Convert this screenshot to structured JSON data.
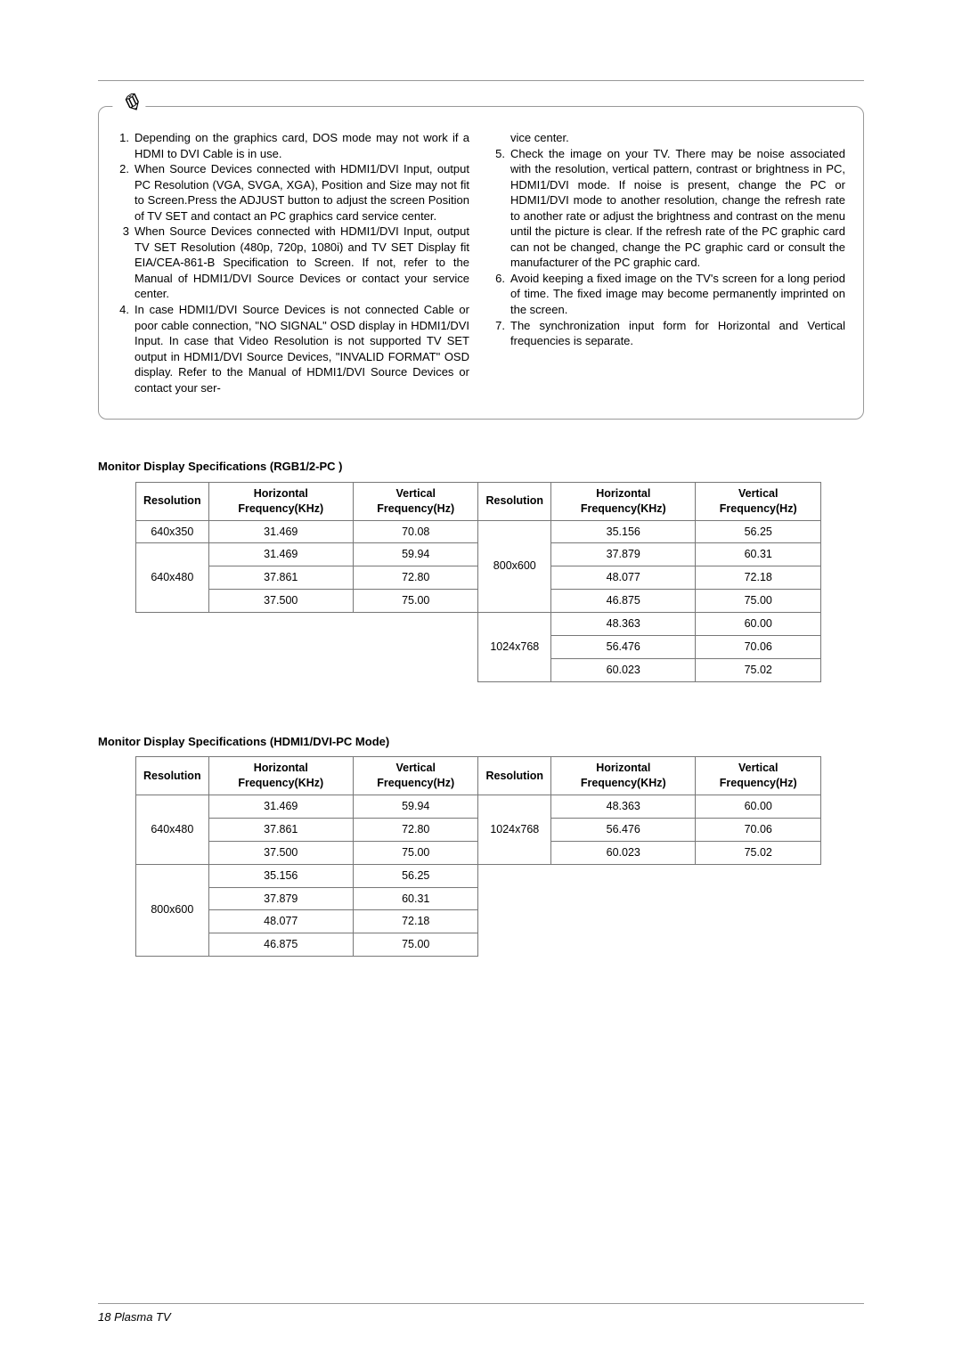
{
  "notes_left": [
    {
      "n": "1.",
      "t": "Depending on the graphics card, DOS mode may not work if a HDMI to DVI Cable is in use."
    },
    {
      "n": "2.",
      "t": "When Source Devices connected with HDMI1/DVI Input, output PC Resolution (VGA, SVGA, XGA), Position and Size may not fit to Screen.Press the ADJUST button to adjust the screen Position of TV SET and contact an PC graphics card service center."
    },
    {
      "n": "3",
      "t": "When Source Devices connected with HDMI1/DVI Input, output TV SET Resolution (480p, 720p, 1080i) and TV SET Display fit EIA/CEA-861-B Specification to Screen. If not, refer to the Manual of HDMI1/DVI Source Devices or contact your service center."
    },
    {
      "n": "4.",
      "t": "In case HDMI1/DVI Source Devices is not connected Cable or poor cable connection, \"NO SIGNAL\" OSD display in HDMI1/DVI Input. In case that Video Resolution is not supported TV SET output in HDMI1/DVI Source Devices, \"INVALID FORMAT\" OSD display. Refer to the Manual of HDMI1/DVI Source Devices or contact your ser‑"
    }
  ],
  "notes_right": [
    {
      "n": "",
      "t": "vice center."
    },
    {
      "n": "5.",
      "t": "Check the image on your TV. There may be noise associated with the resolution, vertical pattern, contrast or brightness in PC, HDMI1/DVI mode. If noise is present, change the PC or HDMI1/DVI mode to another resolution, change the refresh rate to another rate or adjust the brightness and contrast on the menu until the picture is clear. If the refresh rate of the PC graphic card can not be changed, change the PC graphic card or consult the manufacturer of the PC graphic card."
    },
    {
      "n": "6.",
      "t": "Avoid keeping a fixed image on the TV's screen for a long period of time. The fixed image may become permanently imprinted on the screen."
    },
    {
      "n": "7.",
      "t": "The synchronization input form for Horizontal and Vertical frequencies is separate."
    }
  ],
  "section1_title": "Monitor Display Specifications (RGB1/2-PC )",
  "section2_title": "Monitor Display Specifications (HDMI1/DVI-PC Mode)",
  "headers": {
    "res": "Resolution",
    "hf": "Horizontal Frequency(KHz)",
    "vf": "Vertical Frequency(Hz)"
  },
  "t1": {
    "r1": {
      "res": "640x350",
      "h": "31.469",
      "v": "70.08"
    },
    "r2": {
      "res": "640x480",
      "h1": "31.469",
      "v1": "59.94",
      "h2": "37.861",
      "v2": "72.80",
      "h3": "37.500",
      "v3": "75.00"
    },
    "r3": {
      "res": "800x600",
      "h1": "35.156",
      "v1": "56.25",
      "h2": "37.879",
      "v2": "60.31",
      "h3": "48.077",
      "v3": "72.18",
      "h4": "46.875",
      "v4": "75.00"
    },
    "r4": {
      "res": "1024x768",
      "h1": "48.363",
      "v1": "60.00",
      "h2": "56.476",
      "v2": "70.06",
      "h3": "60.023",
      "v3": "75.02"
    }
  },
  "t2": {
    "r1": {
      "res": "640x480",
      "h1": "31.469",
      "v1": "59.94",
      "h2": "37.861",
      "v2": "72.80",
      "h3": "37.500",
      "v3": "75.00"
    },
    "r2": {
      "res": "800x600",
      "h1": "35.156",
      "v1": "56.25",
      "h2": "37.879",
      "v2": "60.31",
      "h3": "48.077",
      "v3": "72.18",
      "h4": "46.875",
      "v4": "75.00"
    },
    "r3": {
      "res": "1024x768",
      "h1": "48.363",
      "v1": "60.00",
      "h2": "56.476",
      "v2": "70.06",
      "h3": "60.023",
      "v3": "75.02"
    }
  },
  "footer": "18   Plasma TV"
}
